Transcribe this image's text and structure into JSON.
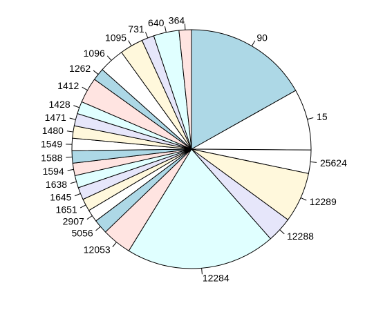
{
  "chart_data": {
    "type": "pie",
    "labels": [
      "90",
      "15",
      "25624",
      "12289",
      "12288",
      "12284",
      "12053",
      "5056",
      "2907",
      "1651",
      "1645",
      "1638",
      "1594",
      "1588",
      "1549",
      "1480",
      "1471",
      "1428",
      "1412",
      "1262",
      "1096",
      "1095",
      "731",
      "640",
      "364"
    ],
    "values": [
      18.1,
      8.9,
      3.4,
      7.3,
      3.7,
      21.8,
      4.3,
      2.1,
      1.8,
      1.8,
      1.8,
      1.8,
      1.8,
      1.8,
      1.8,
      1.8,
      1.8,
      1.8,
      3.7,
      1.8,
      3.7,
      3.4,
      1.8,
      3.7,
      1.8
    ],
    "direction": "clockwise",
    "start_angle_deg": 90,
    "colors": [
      "#add8e6",
      "#ffffff",
      "#ffffff",
      "#fff8dc",
      "#e6e6fa",
      "#e0ffff",
      "#ffe4e1",
      "#add8e6",
      "#ffffff",
      "#fff8dc",
      "#e6e6fa",
      "#e0ffff",
      "#ffe4e1",
      "#add8e6",
      "#ffffff",
      "#fff8dc",
      "#e6e6fa",
      "#e0ffff",
      "#ffe4e1",
      "#add8e6",
      "#ffffff",
      "#fff8dc",
      "#e6e6fa",
      "#e0ffff",
      "#ffe4e1"
    ],
    "title": "",
    "legend": "none"
  }
}
